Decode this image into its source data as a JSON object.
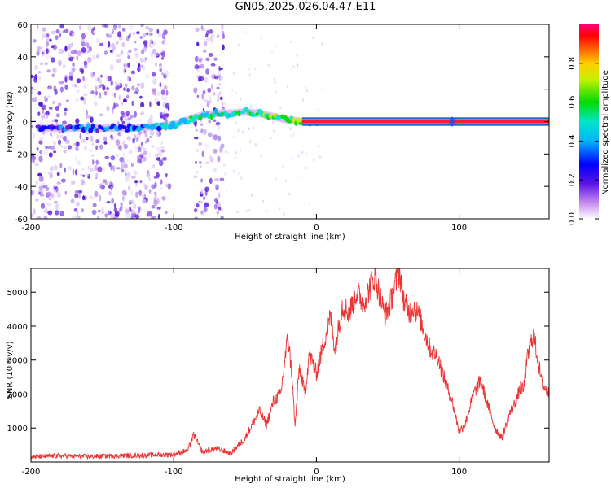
{
  "title": "GN05.2025.026.04.47.E11",
  "chart_data": [
    {
      "type": "heatmap",
      "xlabel": "Height of straight line (km)",
      "ylabel": "Frequency (Hz)",
      "xlim": [
        -200,
        163
      ],
      "ylim": [
        -60,
        60
      ],
      "x_ticks": [
        "-200",
        "-100",
        "0",
        "100"
      ],
      "y_ticks": [
        "60",
        "40",
        "20",
        "0",
        "-20",
        "-40",
        "-60"
      ],
      "colorbar": {
        "label": "Normalized spectral amplitude",
        "ticks": [
          "0.0",
          "0.2",
          "0.4",
          "0.6",
          "0.8"
        ],
        "range": [
          0,
          1
        ]
      },
      "ridge": {
        "x": [
          -190,
          -170,
          -150,
          -130,
          -110,
          -100,
          -90,
          -80,
          -70,
          -60,
          -50,
          -40,
          -30,
          -20,
          -10,
          0,
          50,
          100,
          160
        ],
        "y": [
          -4,
          -4,
          -4,
          -4,
          -3,
          -2,
          1,
          4,
          5,
          5,
          6,
          5,
          3,
          1,
          0,
          0,
          0,
          0,
          0
        ]
      },
      "noise_regions": [
        [
          -200,
          -103
        ],
        [
          -85,
          -65
        ]
      ],
      "strong_line": {
        "x_start": -10,
        "x_end": 163,
        "y": 0
      }
    },
    {
      "type": "line",
      "xlabel": "Height of straight line (km)",
      "ylabel": "SNR (10 * v/v)",
      "xlim": [
        -200,
        163
      ],
      "ylim": [
        0,
        5700
      ],
      "x_ticks": [
        "-200",
        "-100",
        "0",
        "100"
      ],
      "y_ticks": [
        "1000",
        "2000",
        "3000",
        "4000",
        "5000"
      ],
      "series": [
        {
          "color": "#ee3333",
          "x": [
            -200,
            -180,
            -160,
            -140,
            -120,
            -100,
            -90,
            -86,
            -80,
            -70,
            -60,
            -50,
            -45,
            -40,
            -35,
            -30,
            -25,
            -20,
            -17,
            -15,
            -12,
            -8,
            -5,
            0,
            5,
            10,
            13,
            18,
            23,
            28,
            33,
            38,
            41,
            45,
            48,
            52,
            55,
            58,
            62,
            66,
            68,
            72,
            75,
            80,
            85,
            90,
            95,
            100,
            104,
            110,
            115,
            120,
            125,
            130,
            135,
            140,
            143,
            145,
            148,
            152,
            158,
            163
          ],
          "y": [
            150,
            180,
            160,
            180,
            200,
            220,
            350,
            800,
            300,
            400,
            250,
            700,
            1100,
            1500,
            1100,
            1800,
            2000,
            3700,
            2500,
            1000,
            2800,
            2000,
            3200,
            2600,
            3500,
            4300,
            3300,
            4600,
            4400,
            5000,
            4700,
            5200,
            5500,
            4800,
            4300,
            4700,
            5200,
            5600,
            4600,
            4400,
            4600,
            4300,
            3900,
            3300,
            3100,
            2400,
            1800,
            900,
            1100,
            2000,
            2400,
            1700,
            1000,
            700,
            1400,
            1800,
            2200,
            2100,
            3100,
            3800,
            2300,
            2000
          ]
        }
      ]
    }
  ]
}
